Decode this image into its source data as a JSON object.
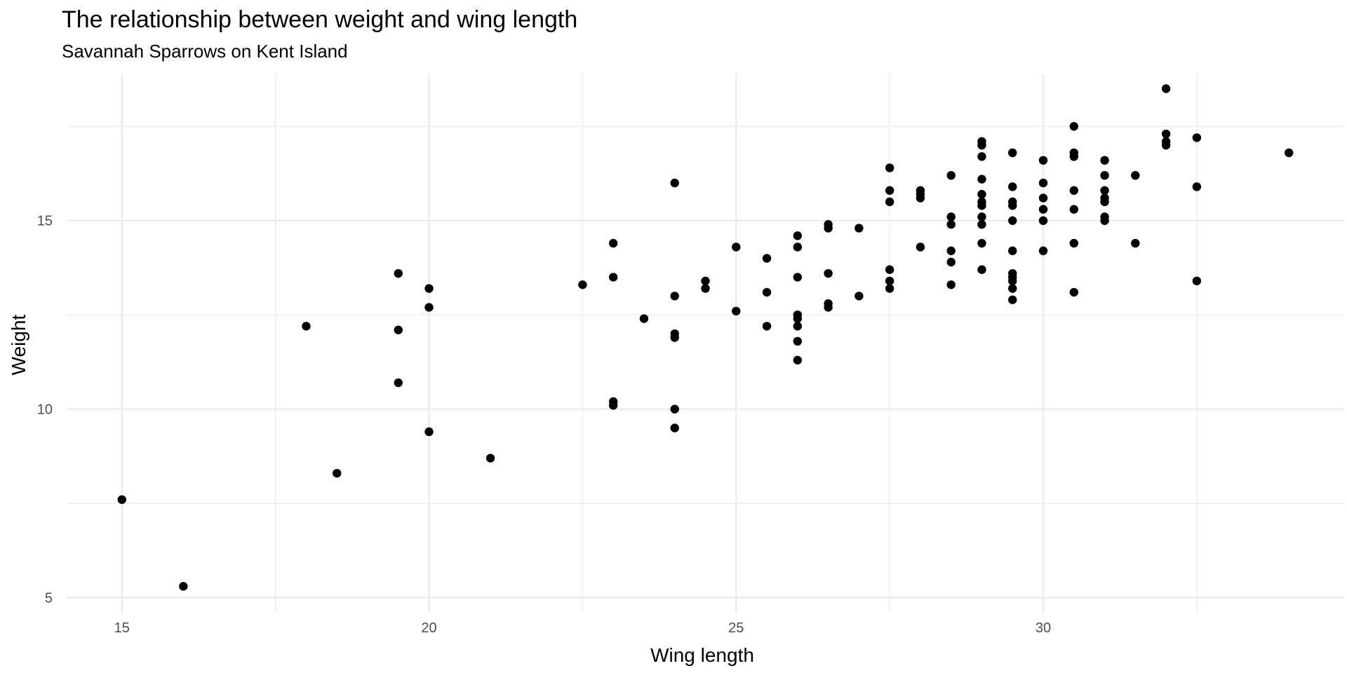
{
  "chart_data": {
    "type": "scatter",
    "title": "The relationship between weight and wing length",
    "subtitle": "Savannah Sparrows on Kent Island",
    "xlabel": "Wing length",
    "ylabel": "Weight",
    "xlim": [
      14.1,
      34.9
    ],
    "ylim": [
      4.6,
      18.9
    ],
    "x_ticks": [
      15,
      20,
      25,
      30
    ],
    "x_tick_labels": [
      "15",
      "20",
      "25",
      "30"
    ],
    "y_ticks": [
      5,
      10,
      15
    ],
    "y_tick_labels": [
      "5",
      "10",
      "15"
    ],
    "grid": true,
    "point_color": "#000000",
    "grid_color": "#ebebeb",
    "points": [
      {
        "x": 15,
        "y": 7.6
      },
      {
        "x": 16,
        "y": 5.3
      },
      {
        "x": 18,
        "y": 12.2
      },
      {
        "x": 18.5,
        "y": 8.3
      },
      {
        "x": 19.5,
        "y": 13.6
      },
      {
        "x": 19.5,
        "y": 12.1
      },
      {
        "x": 19.5,
        "y": 10.7
      },
      {
        "x": 20,
        "y": 13.2
      },
      {
        "x": 20,
        "y": 12.7
      },
      {
        "x": 20,
        "y": 9.4
      },
      {
        "x": 21,
        "y": 8.7
      },
      {
        "x": 22.5,
        "y": 13.3
      },
      {
        "x": 23,
        "y": 14.4
      },
      {
        "x": 23,
        "y": 13.5
      },
      {
        "x": 23,
        "y": 10.2
      },
      {
        "x": 23,
        "y": 10.1
      },
      {
        "x": 23.5,
        "y": 12.4
      },
      {
        "x": 24,
        "y": 16
      },
      {
        "x": 24,
        "y": 13
      },
      {
        "x": 24,
        "y": 12
      },
      {
        "x": 24,
        "y": 11.9
      },
      {
        "x": 24,
        "y": 10
      },
      {
        "x": 24,
        "y": 9.5
      },
      {
        "x": 24.5,
        "y": 13.4
      },
      {
        "x": 24.5,
        "y": 13.2
      },
      {
        "x": 25,
        "y": 14.3
      },
      {
        "x": 25,
        "y": 12.6
      },
      {
        "x": 25.5,
        "y": 14
      },
      {
        "x": 25.5,
        "y": 13.1
      },
      {
        "x": 25.5,
        "y": 12.2
      },
      {
        "x": 26,
        "y": 14.6
      },
      {
        "x": 26,
        "y": 14.3
      },
      {
        "x": 26,
        "y": 13.5
      },
      {
        "x": 26,
        "y": 12.5
      },
      {
        "x": 26,
        "y": 12.4
      },
      {
        "x": 26,
        "y": 12.2
      },
      {
        "x": 26,
        "y": 11.8
      },
      {
        "x": 26,
        "y": 11.3
      },
      {
        "x": 26.5,
        "y": 14.9
      },
      {
        "x": 26.5,
        "y": 14.8
      },
      {
        "x": 26.5,
        "y": 13.6
      },
      {
        "x": 26.5,
        "y": 12.8
      },
      {
        "x": 26.5,
        "y": 12.7
      },
      {
        "x": 27,
        "y": 14.8
      },
      {
        "x": 27,
        "y": 13
      },
      {
        "x": 27.5,
        "y": 16.4
      },
      {
        "x": 27.5,
        "y": 15.8
      },
      {
        "x": 27.5,
        "y": 15.5
      },
      {
        "x": 27.5,
        "y": 13.7
      },
      {
        "x": 27.5,
        "y": 13.4
      },
      {
        "x": 27.5,
        "y": 13.2
      },
      {
        "x": 28,
        "y": 15.8
      },
      {
        "x": 28,
        "y": 15.7
      },
      {
        "x": 28,
        "y": 15.6
      },
      {
        "x": 28,
        "y": 14.3
      },
      {
        "x": 28.5,
        "y": 16.2
      },
      {
        "x": 28.5,
        "y": 15.1
      },
      {
        "x": 28.5,
        "y": 14.9
      },
      {
        "x": 28.5,
        "y": 14.2
      },
      {
        "x": 28.5,
        "y": 13.9
      },
      {
        "x": 28.5,
        "y": 13.3
      },
      {
        "x": 29,
        "y": 17.1
      },
      {
        "x": 29,
        "y": 17
      },
      {
        "x": 29,
        "y": 16.7
      },
      {
        "x": 29,
        "y": 16.1
      },
      {
        "x": 29,
        "y": 15.7
      },
      {
        "x": 29,
        "y": 15.5
      },
      {
        "x": 29,
        "y": 15.4
      },
      {
        "x": 29,
        "y": 15.1
      },
      {
        "x": 29,
        "y": 14.9
      },
      {
        "x": 29,
        "y": 14.4
      },
      {
        "x": 29,
        "y": 13.7
      },
      {
        "x": 29.5,
        "y": 16.8
      },
      {
        "x": 29.5,
        "y": 15.9
      },
      {
        "x": 29.5,
        "y": 15.5
      },
      {
        "x": 29.5,
        "y": 15.4
      },
      {
        "x": 29.5,
        "y": 15
      },
      {
        "x": 29.5,
        "y": 14.2
      },
      {
        "x": 29.5,
        "y": 13.6
      },
      {
        "x": 29.5,
        "y": 13.5
      },
      {
        "x": 29.5,
        "y": 13.4
      },
      {
        "x": 29.5,
        "y": 13.2
      },
      {
        "x": 29.5,
        "y": 12.9
      },
      {
        "x": 30,
        "y": 16.6
      },
      {
        "x": 30,
        "y": 16
      },
      {
        "x": 30,
        "y": 15.6
      },
      {
        "x": 30,
        "y": 15.3
      },
      {
        "x": 30,
        "y": 15
      },
      {
        "x": 30,
        "y": 14.2
      },
      {
        "x": 30.5,
        "y": 17.5
      },
      {
        "x": 30.5,
        "y": 16.8
      },
      {
        "x": 30.5,
        "y": 16.7
      },
      {
        "x": 30.5,
        "y": 15.8
      },
      {
        "x": 30.5,
        "y": 15.3
      },
      {
        "x": 30.5,
        "y": 14.4
      },
      {
        "x": 30.5,
        "y": 13.1
      },
      {
        "x": 31,
        "y": 16.6
      },
      {
        "x": 31,
        "y": 16.2
      },
      {
        "x": 31,
        "y": 15.8
      },
      {
        "x": 31,
        "y": 15.6
      },
      {
        "x": 31,
        "y": 15.5
      },
      {
        "x": 31,
        "y": 15.1
      },
      {
        "x": 31,
        "y": 15
      },
      {
        "x": 31.5,
        "y": 16.2
      },
      {
        "x": 31.5,
        "y": 14.4
      },
      {
        "x": 32,
        "y": 18.5
      },
      {
        "x": 32,
        "y": 17.3
      },
      {
        "x": 32,
        "y": 17.1
      },
      {
        "x": 32,
        "y": 17
      },
      {
        "x": 32.5,
        "y": 17.2
      },
      {
        "x": 32.5,
        "y": 15.9
      },
      {
        "x": 32.5,
        "y": 13.4
      },
      {
        "x": 34,
        "y": 16.8
      }
    ]
  }
}
